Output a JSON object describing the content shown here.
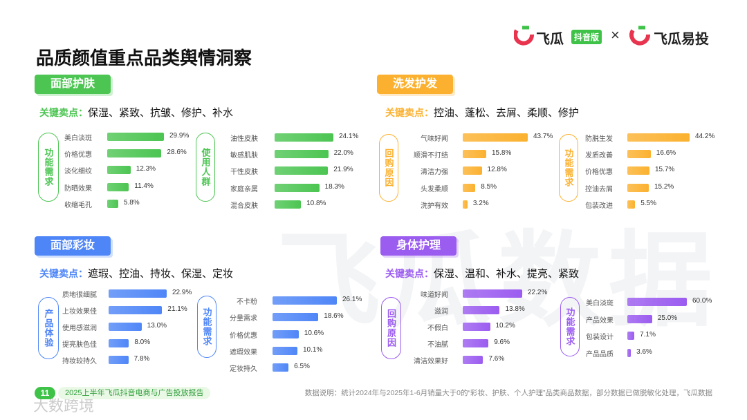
{
  "header": {
    "title": "品质颜值重点品类舆情洞察",
    "brand": "飞瓜",
    "brand_tag": "抖音版",
    "separator": "×",
    "brand2": "飞瓜易投"
  },
  "watermark": "飞瓜数据",
  "corner_mark": "大数跨境",
  "sections": [
    {
      "title": "面部护肤",
      "key_label": "关键卖点：",
      "key_points": "保湿、紧致、抗皱、修护、补水",
      "color": "#4cc552"
    },
    {
      "title": "洗发护发",
      "key_label": "关键卖点：",
      "key_points": "控油、蓬松、去屑、柔顺、修护",
      "color": "#fbb12f"
    },
    {
      "title": "面部彩妆",
      "key_label": "关键卖点：",
      "key_points": "遮瑕、控油、持妆、保湿、定妆",
      "color": "#4f86f7"
    },
    {
      "title": "身体护理",
      "key_label": "关键卖点：",
      "key_points": "保湿、温和、补水、提亮、紧致",
      "color": "#9b5cf0"
    }
  ],
  "chart_data": [
    {
      "type": "bar",
      "group": "功能需求",
      "color": "#4cc552",
      "categories": [
        "美白淡斑",
        "价格优惠",
        "淡化细纹",
        "防晒效果",
        "收缩毛孔"
      ],
      "values": [
        29.9,
        28.6,
        12.3,
        11.4,
        5.8
      ],
      "value_labels": [
        "29.9%",
        "28.6%",
        "12.3%",
        "11.4%",
        "5.8%"
      ]
    },
    {
      "type": "bar",
      "group": "使用人群",
      "color": "#4cc552",
      "categories": [
        "油性皮肤",
        "敏感肌肤",
        "干性皮肤",
        "家庭亲属",
        "混合皮肤"
      ],
      "values": [
        24.1,
        22.0,
        21.9,
        18.3,
        10.8
      ],
      "value_labels": [
        "24.1%",
        "22.0%",
        "21.9%",
        "18.3%",
        "10.8%"
      ]
    },
    {
      "type": "bar",
      "group": "产品体验",
      "color": "#4f86f7",
      "categories": [
        "质地很细腻",
        "上妆效果佳",
        "使用感滋润",
        "提亮肤色佳",
        "持妆较持久"
      ],
      "values": [
        22.9,
        21.1,
        13.0,
        8.0,
        7.8
      ],
      "value_labels": [
        "22.9%",
        "21.1%",
        "13.0%",
        "8.0%",
        "7.8%"
      ]
    },
    {
      "type": "bar",
      "group": "功能需求",
      "color": "#4f86f7",
      "categories": [
        "不卡粉",
        "分量需求",
        "价格优惠",
        "遮瑕效果",
        "定妆持久"
      ],
      "values": [
        26.1,
        18.6,
        10.6,
        10.1,
        6.5
      ],
      "value_labels": [
        "26.1%",
        "18.6%",
        "10.6%",
        "10.1%",
        "6.5%"
      ]
    },
    {
      "type": "bar",
      "group": "回购原因",
      "color": "#fbb12f",
      "categories": [
        "气味好闻",
        "顺滑不打结",
        "清洁力强",
        "头发柔顺",
        "洗护有效"
      ],
      "values": [
        43.7,
        15.8,
        12.8,
        8.5,
        3.2
      ],
      "value_labels": [
        "43.7%",
        "15.8%",
        "12.8%",
        "8.5%",
        "3.2%"
      ]
    },
    {
      "type": "bar",
      "group": "功能需求",
      "color": "#fbb12f",
      "categories": [
        "防脱生发",
        "发质改善",
        "价格优惠",
        "控油去屑",
        "包装改进"
      ],
      "values": [
        44.2,
        16.6,
        15.7,
        15.2,
        5.5
      ],
      "value_labels": [
        "44.2%",
        "16.6%",
        "15.7%",
        "15.2%",
        "5.5%"
      ]
    },
    {
      "type": "bar",
      "group": "回购原因",
      "color": "#9b5cf0",
      "categories": [
        "味道好闻",
        "滋润",
        "不假白",
        "不油腻",
        "清洁效果好"
      ],
      "values": [
        22.2,
        13.8,
        10.2,
        9.6,
        7.6
      ],
      "value_labels": [
        "22.2%",
        "13.8%",
        "10.2%",
        "9.6%",
        "7.6%"
      ]
    },
    {
      "type": "bar",
      "group": "功能需求",
      "color": "#9b5cf0",
      "categories": [
        "美白淡斑",
        "产品效果",
        "包装设计",
        "产品品质"
      ],
      "values": [
        60.0,
        25.0,
        7.1,
        3.6
      ],
      "value_labels": [
        "60.0%",
        "25.0%",
        "7.1%",
        "3.6%"
      ]
    }
  ],
  "footer": {
    "page": "11",
    "report": "2025上半年飞瓜抖音电商与广告投放报告",
    "note": "数据说明：统计2024年与2025年1-6月销量大于0的“彩妆、护肤、个人护理”品类商品数据，部分数据已做脱敏化处理，飞瓜数据"
  }
}
